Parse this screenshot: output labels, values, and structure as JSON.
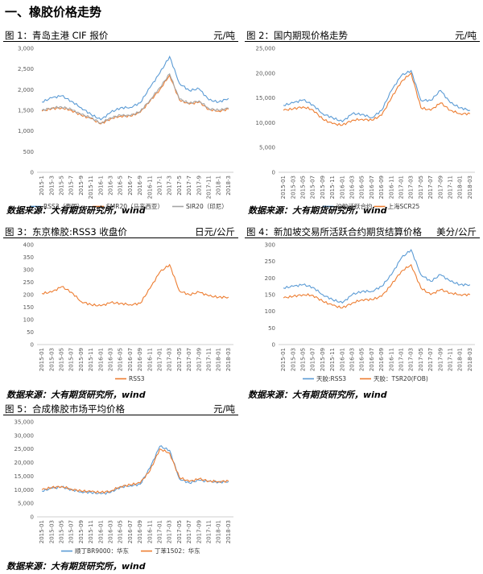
{
  "section": {
    "title": "一、橡胶价格走势"
  },
  "charts": [
    {
      "heading": "图 1：青岛主港 CIF 报价",
      "unit": "元/吨",
      "source": "数据来源：大有期货研究所，wind"
    },
    {
      "heading": "图 2：国内期现价格走势",
      "unit": "元/吨",
      "source": "数据来源：大有期货研究所，wind"
    },
    {
      "heading": "图 3：东京橡胶:RSS3 收盘价",
      "unit": "日元/公斤",
      "source": "数据来源：大有期货研究所，wind"
    },
    {
      "heading": "图 4：新加坡交易所活跃合约期货结算价格",
      "unit": "美分/公斤",
      "source": "数据来源：大有期货研究所，wind"
    },
    {
      "heading": "图 5：合成橡胶市场平均价格",
      "unit": "元/吨",
      "source": "数据来源：大有期货研究所，wind"
    }
  ],
  "chart_data": [
    {
      "type": "line",
      "title": "图 1：青岛主港 CIF 报价",
      "unit": "元/吨",
      "x": [
        "2015-1",
        "2015-3",
        "2015-5",
        "2015-7",
        "2015-9",
        "2015-11",
        "2016-1",
        "2016-3",
        "2016-5",
        "2016-7",
        "2016-9",
        "2016-11",
        "2017-1",
        "2017-3",
        "2017-5",
        "2017-7",
        "2017-9",
        "2017-11",
        "2018-1",
        "2018-3"
      ],
      "ylim": [
        0,
        3000
      ],
      "yticks": [
        0,
        500,
        1000,
        1500,
        2000,
        2500,
        3000
      ],
      "ytick_labels": [
        "0",
        "500",
        "1,000",
        "1,500",
        "2,000",
        "2,500",
        "3,000"
      ],
      "series": [
        {
          "name": "RSS3（泰国）",
          "color": "#5b9bd5",
          "values": [
            1700,
            1800,
            1850,
            1720,
            1560,
            1400,
            1270,
            1450,
            1560,
            1570,
            1680,
            2050,
            2400,
            2800,
            2150,
            1980,
            2020,
            1750,
            1700,
            1790
          ]
        },
        {
          "name": "SMR20（马来西亚）",
          "color": "#ed7d31",
          "values": [
            1480,
            1540,
            1560,
            1500,
            1380,
            1300,
            1170,
            1300,
            1360,
            1360,
            1450,
            1720,
            2000,
            2350,
            1750,
            1650,
            1700,
            1520,
            1480,
            1530
          ]
        },
        {
          "name": "SIR20（印尼）",
          "color": "#a5a5a5",
          "values": [
            1500,
            1560,
            1580,
            1520,
            1400,
            1320,
            1190,
            1320,
            1380,
            1370,
            1470,
            1750,
            2050,
            2380,
            1770,
            1670,
            1730,
            1540,
            1500,
            1550
          ]
        }
      ]
    },
    {
      "type": "line",
      "title": "图 2：国内期现价格走势",
      "unit": "元/吨",
      "x": [
        "2015-01",
        "2015-03",
        "2015-05",
        "2015-07",
        "2015-09",
        "2015-11",
        "2016-01",
        "2016-03",
        "2016-05",
        "2016-07",
        "2016-09",
        "2016-11",
        "2017-01",
        "2017-03",
        "2017-05",
        "2017-07",
        "2017-09",
        "2017-11",
        "2018-01",
        "2018-03"
      ],
      "ylim": [
        0,
        25000
      ],
      "yticks": [
        0,
        5000,
        10000,
        15000,
        20000,
        25000
      ],
      "ytick_labels": [
        "0",
        "5,000",
        "10,000",
        "15,000",
        "20,000",
        "25,000"
      ],
      "series": [
        {
          "name": "沪胶活跃合约",
          "color": "#5b9bd5",
          "values": [
            13500,
            14000,
            14600,
            13600,
            11800,
            11000,
            10200,
            11800,
            11700,
            11000,
            12500,
            16500,
            19500,
            20500,
            14500,
            14500,
            16500,
            14000,
            13000,
            12500
          ]
        },
        {
          "name": "上海SCR25",
          "color": "#ed7d31",
          "values": [
            12500,
            12800,
            13200,
            12600,
            10700,
            9800,
            9500,
            10500,
            10700,
            10500,
            11500,
            15000,
            18300,
            20000,
            13000,
            12500,
            14000,
            12500,
            11800,
            11800
          ]
        }
      ]
    },
    {
      "type": "line",
      "title": "图 3：东京橡胶:RSS3 收盘价",
      "unit": "日元/公斤",
      "x": [
        "2015-01",
        "2015-03",
        "2015-05",
        "2015-07",
        "2015-09",
        "2015-11",
        "2016-01",
        "2016-03",
        "2016-05",
        "2016-07",
        "2016-09",
        "2016-11",
        "2017-01",
        "2017-03",
        "2017-05",
        "2017-07",
        "2017-09",
        "2017-11",
        "2018-01",
        "2018-03"
      ],
      "ylim": [
        0,
        400
      ],
      "yticks": [
        0,
        50,
        100,
        150,
        200,
        250,
        300,
        350,
        400
      ],
      "ytick_labels": [
        "0",
        "50",
        "100",
        "150",
        "200",
        "250",
        "300",
        "350",
        "400"
      ],
      "series": [
        {
          "name": "RSS3",
          "color": "#ed7d31",
          "values": [
            205,
            210,
            232,
            210,
            172,
            160,
            155,
            168,
            165,
            160,
            165,
            225,
            290,
            320,
            215,
            200,
            210,
            195,
            190,
            190
          ]
        }
      ]
    },
    {
      "type": "line",
      "title": "图 4：新加坡交易所活跃合约期货结算价格",
      "unit": "美分/公斤",
      "x": [
        "2015-01",
        "2015-03",
        "2015-05",
        "2015-07",
        "2015-09",
        "2015-11",
        "2016-01",
        "2016-03",
        "2016-05",
        "2016-07",
        "2016-09",
        "2016-11",
        "2017-01",
        "2017-03",
        "2017-05",
        "2017-07",
        "2017-09",
        "2017-11",
        "2018-01",
        "2018-03"
      ],
      "ylim": [
        0,
        300
      ],
      "yticks": [
        0,
        50,
        100,
        150,
        200,
        250,
        300
      ],
      "ytick_labels": [
        "0",
        "50",
        "100",
        "150",
        "200",
        "250",
        "300"
      ],
      "series": [
        {
          "name": "天胶:RSS3",
          "color": "#5b9bd5",
          "values": [
            170,
            175,
            180,
            172,
            150,
            135,
            125,
            150,
            160,
            160,
            175,
            210,
            260,
            285,
            210,
            190,
            210,
            190,
            180,
            180
          ]
        },
        {
          "name": "天胶：TSR20(FOB)",
          "color": "#ed7d31",
          "values": [
            140,
            145,
            150,
            148,
            130,
            118,
            110,
            125,
            135,
            135,
            145,
            180,
            220,
            240,
            170,
            150,
            165,
            155,
            150,
            150
          ]
        }
      ]
    },
    {
      "type": "line",
      "title": "图 5：合成橡胶市场平均价格",
      "unit": "元/吨",
      "x": [
        "2015-01",
        "2015-03",
        "2015-05",
        "2015-07",
        "2015-09",
        "2015-11",
        "2016-01",
        "2016-03",
        "2016-05",
        "2016-07",
        "2016-09",
        "2016-11",
        "2017-01",
        "2017-03",
        "2017-05",
        "2017-07",
        "2017-09",
        "2017-11",
        "2018-01",
        "2018-03"
      ],
      "ylim": [
        0,
        35000
      ],
      "yticks": [
        0,
        5000,
        10000,
        15000,
        20000,
        25000,
        30000,
        35000
      ],
      "ytick_labels": [
        "0",
        "5,000",
        "10,000",
        "15,000",
        "20,000",
        "25,000",
        "30,000",
        "35,000"
      ],
      "series": [
        {
          "name": "顺丁BR9000：华东",
          "color": "#5b9bd5",
          "values": [
            9500,
            10500,
            11000,
            10000,
            9200,
            9000,
            8500,
            9000,
            11000,
            11500,
            12000,
            18000,
            26000,
            24500,
            14000,
            12500,
            13500,
            13000,
            12800,
            13000
          ]
        },
        {
          "name": "丁苯1502：华东",
          "color": "#ed7d31",
          "values": [
            10000,
            10800,
            11200,
            10200,
            9500,
            9300,
            9000,
            9500,
            11200,
            11800,
            12500,
            17000,
            25000,
            23500,
            14500,
            13000,
            14000,
            13200,
            13000,
            13200
          ]
        }
      ]
    }
  ]
}
